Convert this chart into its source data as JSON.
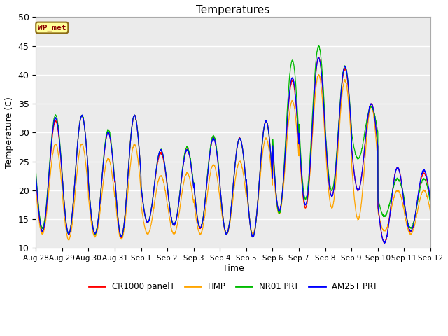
{
  "title": "Temperatures",
  "xlabel": "Time",
  "ylabel": "Temperature (C)",
  "ylim": [
    10,
    50
  ],
  "series_names": [
    "CR1000 panelT",
    "HMP",
    "NR01 PRT",
    "AM25T PRT"
  ],
  "series_colors": [
    "#ff0000",
    "#ffa500",
    "#00bb00",
    "#0000ff"
  ],
  "x_tick_labels": [
    "Aug 28",
    "Aug 29",
    "Aug 30",
    "Aug 31",
    "Sep 1",
    "Sep 2",
    "Sep 3",
    "Sep 4",
    "Sep 5",
    "Sep 6",
    "Sep 7",
    "Sep 8",
    "Sep 9",
    "Sep 10",
    "Sep 11",
    "Sep 12"
  ],
  "legend_box_label": "WP_met",
  "legend_box_color": "#ffff99",
  "legend_box_border": "#8b6914",
  "legend_box_text": "#8b0000",
  "bg_color": "#ebebeb",
  "grid_color": "#ffffff",
  "figsize": [
    6.4,
    4.8
  ],
  "dpi": 100
}
